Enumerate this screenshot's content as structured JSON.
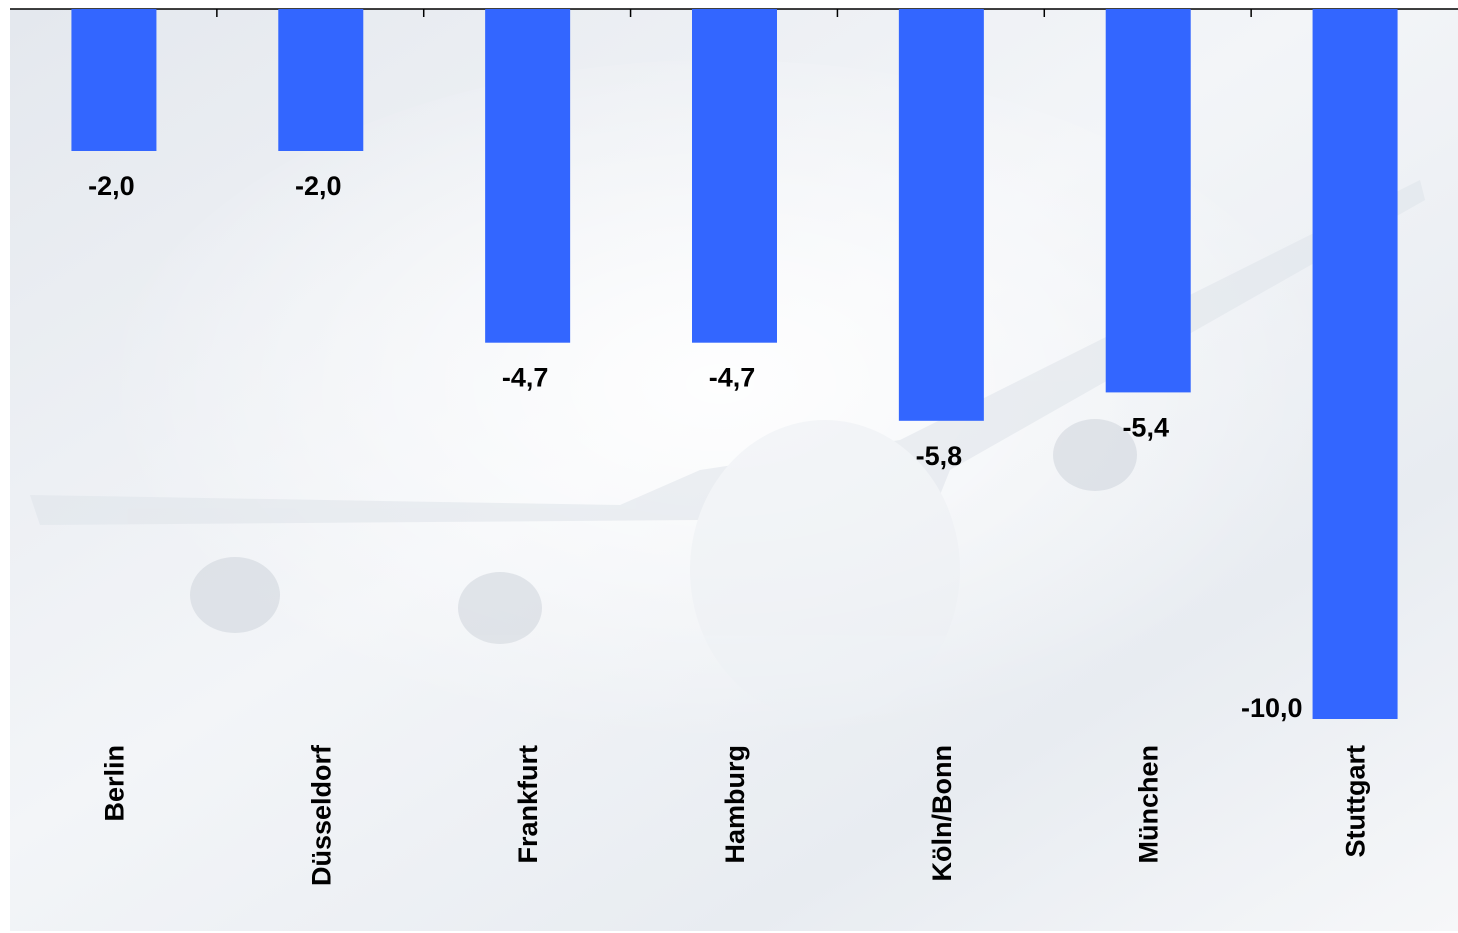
{
  "chart_data": {
    "type": "bar",
    "categories": [
      "Berlin",
      "Düsseldorf",
      "Frankfurt",
      "Hamburg",
      "Köln/Bonn",
      "München",
      "Stuttgart"
    ],
    "values": [
      -2.0,
      -2.0,
      -4.7,
      -4.7,
      -5.8,
      -5.4,
      -10.0
    ],
    "value_labels": [
      "-2,0",
      "-2,0",
      "-4,7",
      "-4,7",
      "-5,8",
      "-5,4",
      "-10,0"
    ],
    "color": "#3366ff",
    "ylim": [
      -10,
      0
    ]
  }
}
